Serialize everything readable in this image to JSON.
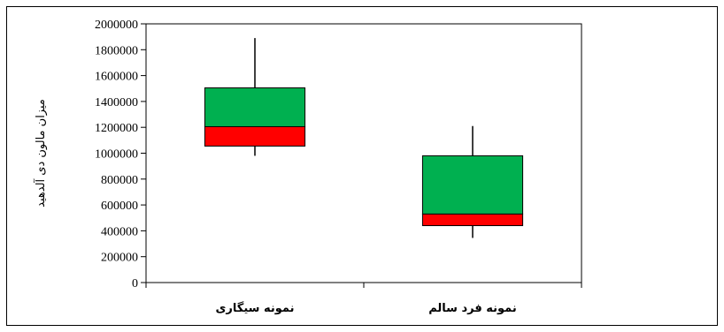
{
  "chart_data": {
    "type": "boxplot",
    "ylabel": "میزان مالون دی آلدهید",
    "ylim": [
      0,
      2000000
    ],
    "yticks": [
      0,
      200000,
      400000,
      600000,
      800000,
      1000000,
      1200000,
      1400000,
      1600000,
      1800000,
      2000000
    ],
    "ytick_labels": [
      "0",
      "200000",
      "400000",
      "600000",
      "800000",
      "1000000",
      "1200000",
      "1400000",
      "1600000",
      "1800000",
      "2000000"
    ],
    "categories": [
      "نمونه سیگاری",
      "نمونه فرد سالم"
    ],
    "boxes": [
      {
        "min": 980000,
        "q1": 1055000,
        "median": 1205000,
        "q3": 1505000,
        "max": 1890000
      },
      {
        "min": 345000,
        "q1": 440000,
        "median": 530000,
        "q3": 980000,
        "max": 1210000
      }
    ],
    "colors": {
      "lower_box": "#ff0000",
      "upper_box": "#00b050",
      "outline": "#000000"
    },
    "grid": false,
    "legend": "none"
  }
}
